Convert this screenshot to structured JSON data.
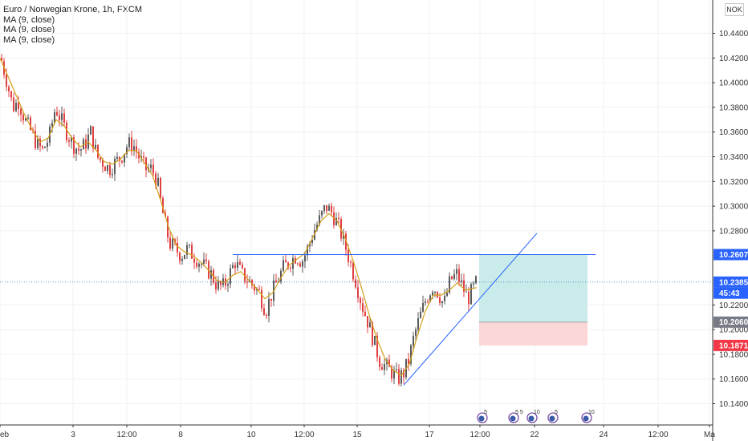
{
  "legend": {
    "title": "Euro / Norwegian Krone, 1h, FXCM",
    "indicators": [
      "MA (9, close)",
      "MA (9, close)",
      "MA (9, close)"
    ]
  },
  "currency": "NOK",
  "colors": {
    "up": "#5a5a5a",
    "down": "#e04040",
    "ma": "#d4a017",
    "line": "#2962ff",
    "profit": "#c9ebe9",
    "loss": "#fbd6d6"
  },
  "chart_data": {
    "type": "candlestick",
    "symbol": "EUR/NOK",
    "timeframe": "1h",
    "ylim": [
      10.128,
      10.456
    ],
    "y_ticks": [
      10.44,
      10.42,
      10.4,
      10.38,
      10.36,
      10.34,
      10.32,
      10.3,
      10.28,
      10.22,
      10.2,
      10.18,
      10.16,
      10.14
    ],
    "y_tick_labels": [
      "10.44000",
      "10.42000",
      "10.40000",
      "10.38000",
      "10.36000",
      "10.34000",
      "10.32000",
      "10.30000",
      "10.28000",
      "10.22000",
      "10.20000",
      "10.18000",
      "10.16000",
      "10.14000"
    ],
    "x_tick_labels": [
      "eb",
      "3",
      "12:00",
      "8",
      "10",
      "12:00",
      "15",
      "17",
      "12:00",
      "22",
      "24",
      "12:00",
      "Ma"
    ],
    "price_tags": [
      {
        "label": "10.26077",
        "value": 10.26077,
        "color": "#2962ff"
      },
      {
        "label": "10.23850",
        "value": 10.2385,
        "color": "#2962ff"
      },
      {
        "label": "45:43",
        "value": 10.2295,
        "color": "#2962ff"
      },
      {
        "label": "10.20609",
        "value": 10.20609,
        "color": "#787b86"
      },
      {
        "label": "10.18716",
        "value": 10.18716,
        "color": "#f23645"
      }
    ],
    "horizontal_line": {
      "y": 10.26077
    },
    "trend_line": {
      "from": [
        503,
        10.155
      ],
      "to": [
        669,
        10.278
      ]
    },
    "position": {
      "entry": 10.20609,
      "target": 10.26077,
      "stop": 10.18716
    },
    "events": [
      "5",
      "5 5",
      "10",
      "5",
      "10"
    ],
    "close_path": [
      [
        0,
        10.42
      ],
      [
        8,
        10.4
      ],
      [
        15,
        10.38
      ],
      [
        22,
        10.385
      ],
      [
        30,
        10.37
      ],
      [
        38,
        10.36
      ],
      [
        45,
        10.35
      ],
      [
        52,
        10.345
      ],
      [
        60,
        10.355
      ],
      [
        68,
        10.38
      ],
      [
        75,
        10.37
      ],
      [
        82,
        10.36
      ],
      [
        90,
        10.35
      ],
      [
        98,
        10.345
      ],
      [
        105,
        10.35
      ],
      [
        112,
        10.36
      ],
      [
        120,
        10.34
      ],
      [
        128,
        10.335
      ],
      [
        135,
        10.33
      ],
      [
        142,
        10.335
      ],
      [
        150,
        10.34
      ],
      [
        158,
        10.35
      ],
      [
        165,
        10.35
      ],
      [
        172,
        10.34
      ],
      [
        180,
        10.33
      ],
      [
        188,
        10.33
      ],
      [
        195,
        10.32
      ],
      [
        200,
        10.3
      ],
      [
        205,
        10.285
      ],
      [
        210,
        10.27
      ],
      [
        218,
        10.265
      ],
      [
        225,
        10.26
      ],
      [
        232,
        10.265
      ],
      [
        240,
        10.26
      ],
      [
        248,
        10.255
      ],
      [
        255,
        10.25
      ],
      [
        262,
        10.245
      ],
      [
        270,
        10.235
      ],
      [
        278,
        10.235
      ],
      [
        285,
        10.245
      ],
      [
        292,
        10.255
      ],
      [
        300,
        10.245
      ],
      [
        308,
        10.24
      ],
      [
        315,
        10.235
      ],
      [
        322,
        10.23
      ],
      [
        330,
        10.215
      ],
      [
        338,
        10.23
      ],
      [
        345,
        10.24
      ],
      [
        352,
        10.25
      ],
      [
        360,
        10.255
      ],
      [
        368,
        10.26
      ],
      [
        375,
        10.255
      ],
      [
        382,
        10.265
      ],
      [
        390,
        10.28
      ],
      [
        398,
        10.29
      ],
      [
        405,
        10.3
      ],
      [
        412,
        10.295
      ],
      [
        420,
        10.285
      ],
      [
        428,
        10.27
      ],
      [
        435,
        10.255
      ],
      [
        442,
        10.24
      ],
      [
        450,
        10.22
      ],
      [
        458,
        10.205
      ],
      [
        465,
        10.19
      ],
      [
        472,
        10.175
      ],
      [
        480,
        10.17
      ],
      [
        488,
        10.165
      ],
      [
        495,
        10.16
      ],
      [
        502,
        10.165
      ],
      [
        508,
        10.175
      ],
      [
        515,
        10.195
      ],
      [
        522,
        10.21
      ],
      [
        530,
        10.225
      ],
      [
        538,
        10.235
      ],
      [
        545,
        10.23
      ],
      [
        552,
        10.22
      ],
      [
        560,
        10.24
      ],
      [
        568,
        10.245
      ],
      [
        575,
        10.235
      ],
      [
        582,
        10.225
      ],
      [
        590,
        10.235
      ],
      [
        594,
        10.24
      ]
    ],
    "ma_path": [
      [
        0,
        10.42
      ],
      [
        10,
        10.405
      ],
      [
        20,
        10.39
      ],
      [
        30,
        10.375
      ],
      [
        40,
        10.362
      ],
      [
        50,
        10.352
      ],
      [
        60,
        10.355
      ],
      [
        70,
        10.37
      ],
      [
        80,
        10.365
      ],
      [
        90,
        10.355
      ],
      [
        100,
        10.348
      ],
      [
        110,
        10.352
      ],
      [
        120,
        10.345
      ],
      [
        130,
        10.336
      ],
      [
        140,
        10.334
      ],
      [
        150,
        10.338
      ],
      [
        160,
        10.345
      ],
      [
        170,
        10.345
      ],
      [
        180,
        10.335
      ],
      [
        190,
        10.325
      ],
      [
        200,
        10.305
      ],
      [
        210,
        10.283
      ],
      [
        220,
        10.268
      ],
      [
        230,
        10.263
      ],
      [
        240,
        10.26
      ],
      [
        250,
        10.255
      ],
      [
        260,
        10.248
      ],
      [
        270,
        10.24
      ],
      [
        280,
        10.238
      ],
      [
        290,
        10.244
      ],
      [
        300,
        10.247
      ],
      [
        310,
        10.24
      ],
      [
        320,
        10.233
      ],
      [
        330,
        10.225
      ],
      [
        340,
        10.23
      ],
      [
        350,
        10.242
      ],
      [
        360,
        10.252
      ],
      [
        370,
        10.257
      ],
      [
        380,
        10.262
      ],
      [
        390,
        10.275
      ],
      [
        400,
        10.288
      ],
      [
        410,
        10.294
      ],
      [
        420,
        10.288
      ],
      [
        430,
        10.274
      ],
      [
        440,
        10.256
      ],
      [
        450,
        10.235
      ],
      [
        460,
        10.212
      ],
      [
        470,
        10.192
      ],
      [
        480,
        10.176
      ],
      [
        490,
        10.167
      ],
      [
        500,
        10.163
      ],
      [
        510,
        10.172
      ],
      [
        520,
        10.195
      ],
      [
        530,
        10.215
      ],
      [
        540,
        10.228
      ],
      [
        550,
        10.228
      ],
      [
        560,
        10.232
      ],
      [
        570,
        10.238
      ],
      [
        580,
        10.232
      ],
      [
        594,
        10.234
      ]
    ]
  }
}
